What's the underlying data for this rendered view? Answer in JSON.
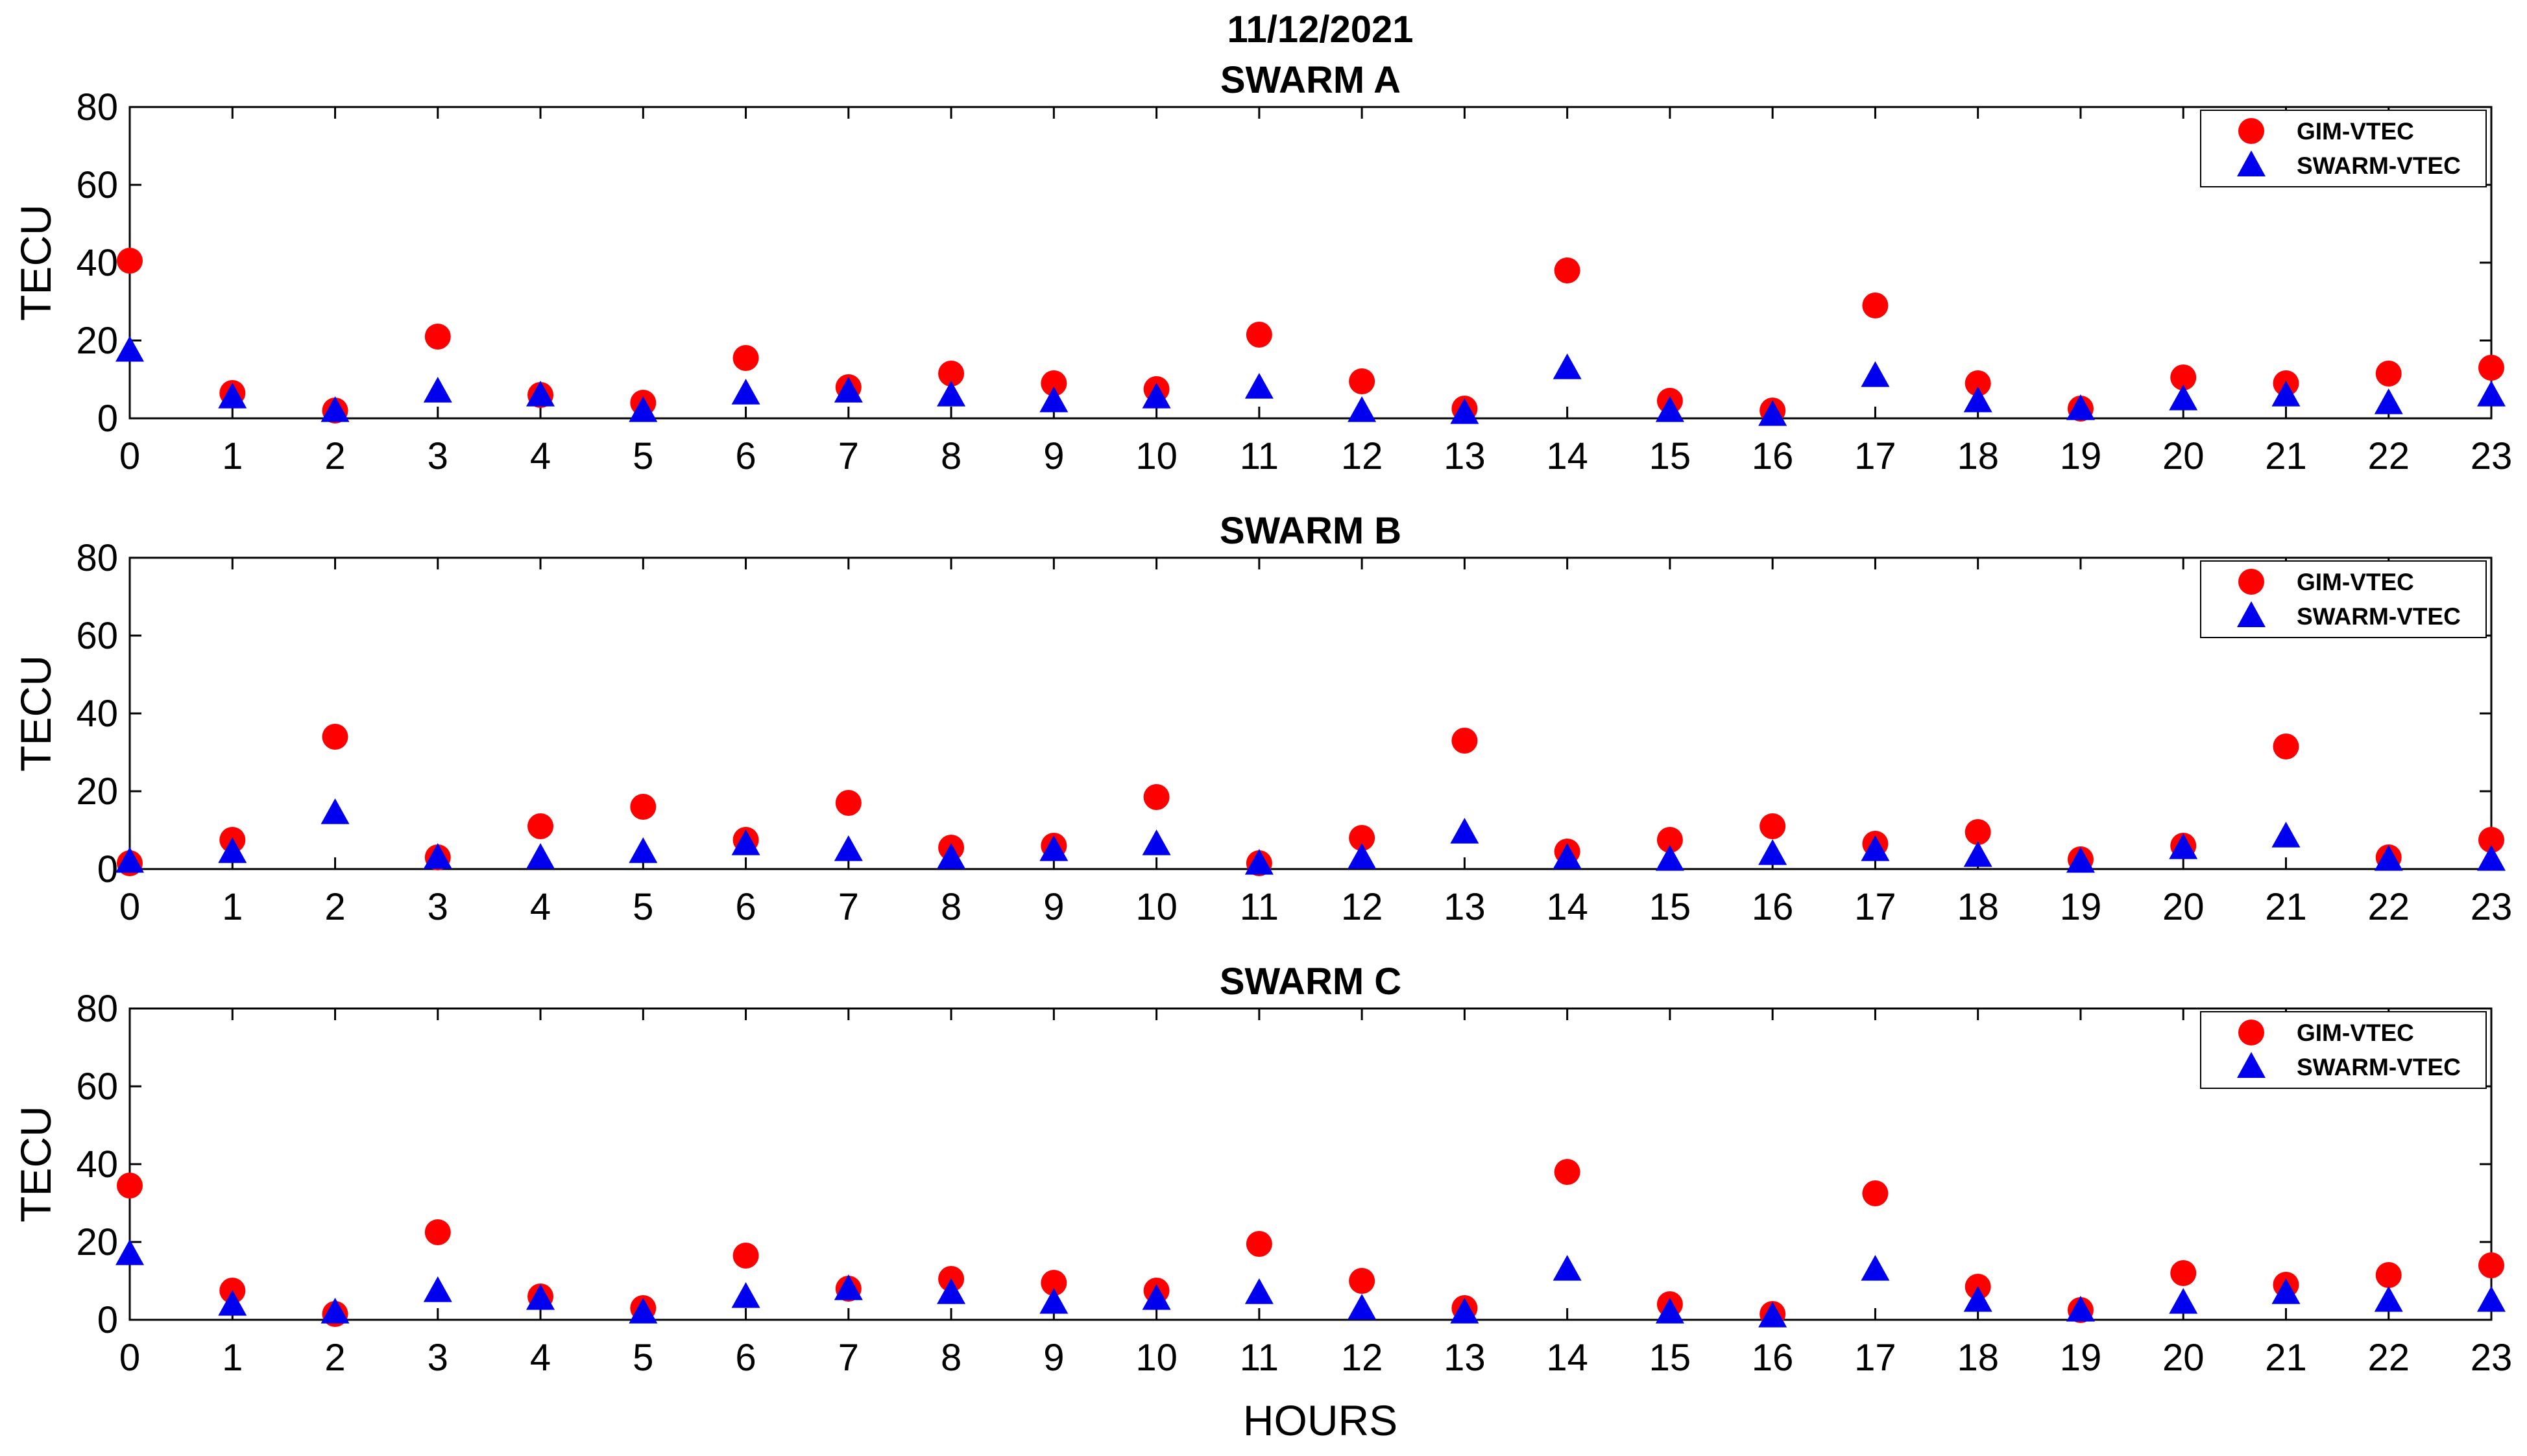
{
  "figure": {
    "date_title": "11/12/2021",
    "xlabel": "HOURS"
  },
  "colors": {
    "gim": "#ff0000",
    "swarm": "#0000ee",
    "axes": "#000000",
    "grid_tick": "#333333"
  },
  "chart_data": [
    {
      "type": "scatter",
      "title": "SWARM A",
      "xlabel": "",
      "ylabel": "TECU",
      "xlim": [
        0,
        23
      ],
      "ylim": [
        0,
        80
      ],
      "xticks": [
        0,
        1,
        2,
        3,
        4,
        5,
        6,
        7,
        8,
        9,
        10,
        11,
        12,
        13,
        14,
        15,
        16,
        17,
        18,
        19,
        20,
        21,
        22,
        23
      ],
      "yticks": [
        0,
        20,
        40,
        60,
        80
      ],
      "legend_position": "top-right",
      "x": [
        0,
        1,
        2,
        3,
        4,
        5,
        6,
        7,
        8,
        9,
        10,
        11,
        12,
        13,
        14,
        15,
        16,
        17,
        18,
        19,
        20,
        21,
        22,
        23
      ],
      "series": [
        {
          "name": "GIM-VTEC",
          "marker": "circle",
          "values": [
            40.5,
            6.5,
            2,
            21,
            6,
            4,
            15.5,
            8,
            11.5,
            9,
            7.5,
            21.5,
            9.5,
            2.5,
            38,
            4.5,
            2,
            29,
            9,
            2.5,
            10.5,
            9,
            11.5,
            13
          ]
        },
        {
          "name": "SWARM-VTEC",
          "marker": "triangle",
          "values": [
            17.5,
            5.5,
            2,
            7,
            6,
            2,
            6.5,
            7,
            6,
            4.5,
            5.5,
            8,
            2,
            1.5,
            13,
            2,
            1,
            11,
            4.5,
            2.5,
            5,
            6,
            4,
            6
          ]
        }
      ]
    },
    {
      "type": "scatter",
      "title": "SWARM B",
      "xlabel": "",
      "ylabel": "TECU",
      "xlim": [
        0,
        23
      ],
      "ylim": [
        0,
        80
      ],
      "xticks": [
        0,
        1,
        2,
        3,
        4,
        5,
        6,
        7,
        8,
        9,
        10,
        11,
        12,
        13,
        14,
        15,
        16,
        17,
        18,
        19,
        20,
        21,
        22,
        23
      ],
      "yticks": [
        0,
        20,
        40,
        60,
        80
      ],
      "legend_position": "top-right",
      "x": [
        0,
        1,
        2,
        3,
        4,
        5,
        6,
        7,
        8,
        9,
        10,
        11,
        12,
        13,
        14,
        15,
        16,
        17,
        18,
        19,
        20,
        21,
        22,
        23
      ],
      "series": [
        {
          "name": "GIM-VTEC",
          "marker": "circle",
          "values": [
            1.5,
            7.5,
            34,
            3,
            11,
            16,
            7.5,
            17,
            5.5,
            6,
            18.5,
            1.5,
            8,
            33,
            4.5,
            7.5,
            11,
            6.5,
            9.5,
            2.5,
            6,
            31.5,
            3,
            7.5
          ]
        },
        {
          "name": "SWARM-VTEC",
          "marker": "triangle",
          "values": [
            2,
            4.5,
            14.5,
            3,
            3,
            4.5,
            6.5,
            5,
            3,
            5,
            6.5,
            1.5,
            3,
            9.5,
            3,
            2.5,
            4,
            5,
            3.5,
            2,
            5.5,
            8.5,
            2.5,
            2.5
          ]
        }
      ]
    },
    {
      "type": "scatter",
      "title": "SWARM C",
      "xlabel": "HOURS",
      "ylabel": "TECU",
      "xlim": [
        0,
        23
      ],
      "ylim": [
        0,
        80
      ],
      "xticks": [
        0,
        1,
        2,
        3,
        4,
        5,
        6,
        7,
        8,
        9,
        10,
        11,
        12,
        13,
        14,
        15,
        16,
        17,
        18,
        19,
        20,
        21,
        22,
        23
      ],
      "yticks": [
        0,
        20,
        40,
        60,
        80
      ],
      "legend_position": "top-right",
      "x": [
        0,
        1,
        2,
        3,
        4,
        5,
        6,
        7,
        8,
        9,
        10,
        11,
        12,
        13,
        14,
        15,
        16,
        17,
        18,
        19,
        20,
        21,
        22,
        23
      ],
      "series": [
        {
          "name": "GIM-VTEC",
          "marker": "circle",
          "values": [
            34.5,
            7.5,
            1.5,
            22.5,
            6,
            3,
            16.5,
            8,
            10.5,
            9.5,
            7.5,
            19.5,
            10,
            3,
            38,
            4,
            1.5,
            32.5,
            8.5,
            2.5,
            12,
            9,
            11.5,
            14
          ]
        },
        {
          "name": "SWARM-VTEC",
          "marker": "triangle",
          "values": [
            17,
            4,
            2,
            7.5,
            5.5,
            2,
            6,
            8,
            7,
            4.5,
            5.5,
            7,
            3,
            2,
            13,
            2,
            1,
            13,
            5,
            2.5,
            4.5,
            7,
            5,
            5
          ]
        }
      ]
    }
  ]
}
